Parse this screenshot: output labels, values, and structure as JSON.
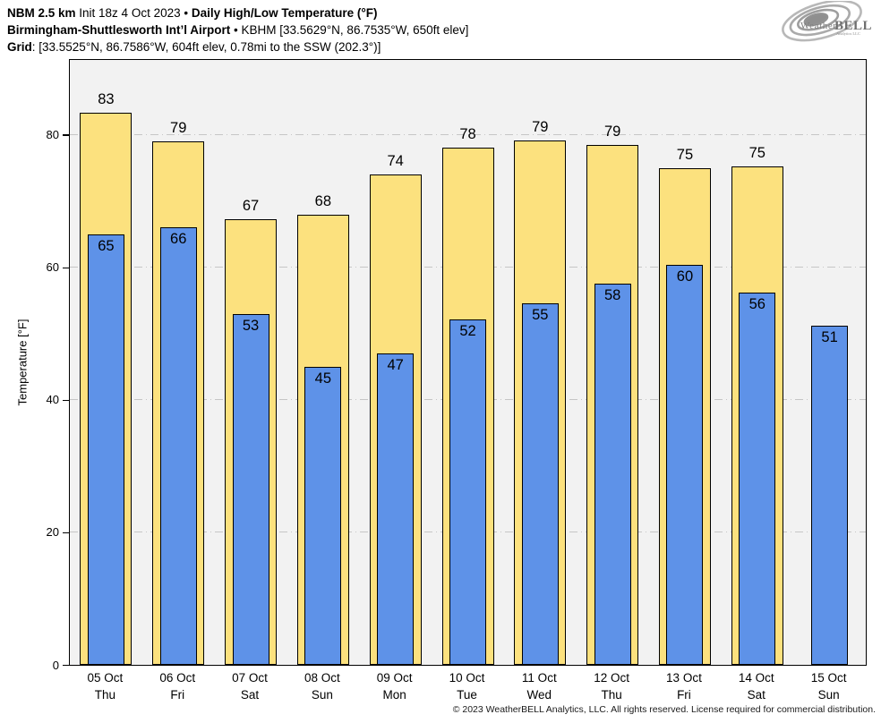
{
  "header": {
    "l1_b1": "NBM 2.5 km",
    "l1_r1": " Init 18z 4 Oct 2023 • ",
    "l1_b2": "Daily High/Low Temperature (°F)",
    "l2_b1": "Birmingham-Shuttlesworth Int’l Airport",
    "l2_r1": " • KBHM [33.5629°N, 86.7535°W, 650ft elev]",
    "l3_b1": "Grid",
    "l3_r1": ": [33.5525°N, 86.7586°W, 604ft elev, 0.78mi to the SSW (202.3°)]"
  },
  "logo": {
    "word1": "Weather",
    "word2": "BELL",
    "sub": "Analytics LLC"
  },
  "footer": {
    "copyright": "© 2023 WeatherBELL Analytics, LLC. All rights reserved. License required for commercial distribution."
  },
  "colors": {
    "plot_bg": "#f2f2f2",
    "grid": "#c6c6c6",
    "bar_border": "#000000",
    "high_bar": "#fce17e",
    "low_bar": "#5e92e8"
  },
  "chart_data": {
    "type": "bar",
    "title": "NBM 2.5 km Init 18z 4 Oct 2023 • Daily High/Low Temperature (°F)",
    "subtitle": "Birmingham-Shuttlesworth Int’l Airport • KBHM",
    "xlabel": "",
    "ylabel": "Temperature [°F]",
    "ylim": [
      0,
      91.3
    ],
    "yticks": [
      0,
      20,
      40,
      60,
      80
    ],
    "gridlines": [
      20,
      40,
      60,
      80
    ],
    "grid_style": "dash-dot",
    "legend_position": "none",
    "categories": [
      "05 Oct",
      "06 Oct",
      "07 Oct",
      "08 Oct",
      "09 Oct",
      "10 Oct",
      "11 Oct",
      "12 Oct",
      "13 Oct",
      "14 Oct",
      "15 Oct"
    ],
    "days": [
      "Thu",
      "Fri",
      "Sat",
      "Sun",
      "Mon",
      "Tue",
      "Wed",
      "Thu",
      "Fri",
      "Sat",
      "Sun"
    ],
    "series": [
      {
        "name": "High",
        "color": "#fce17e",
        "values": [
          83,
          79,
          67,
          68,
          74,
          78,
          79,
          79,
          75,
          75,
          null
        ],
        "draw_values": [
          83.4,
          79.0,
          67.3,
          67.9,
          74.0,
          78.0,
          79.1,
          78.5,
          75.0,
          75.2,
          null
        ]
      },
      {
        "name": "Low",
        "color": "#5e92e8",
        "values": [
          65,
          66,
          53,
          45,
          47,
          52,
          55,
          58,
          60,
          56,
          51
        ],
        "draw_values": [
          65.0,
          66.0,
          53.0,
          45.0,
          47.0,
          52.1,
          54.5,
          57.5,
          60.4,
          56.2,
          51.2
        ]
      }
    ]
  }
}
